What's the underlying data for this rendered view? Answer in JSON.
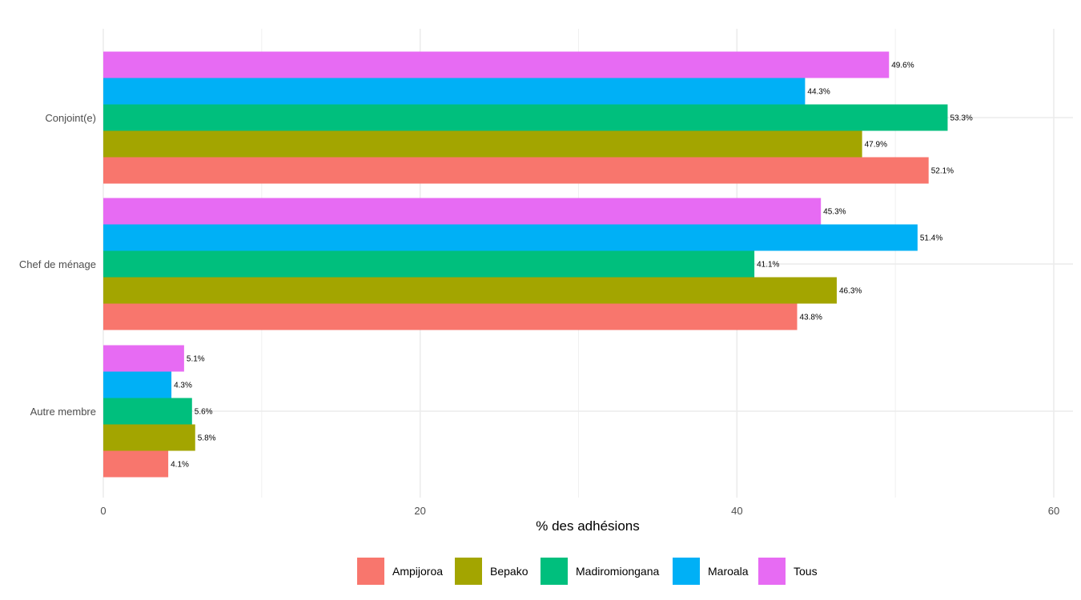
{
  "chart_data": {
    "type": "bar",
    "orientation": "horizontal",
    "title": "",
    "xlabel": "% des adhésions",
    "ylabel": "",
    "xlim": [
      0,
      61
    ],
    "x_ticks": [
      0,
      20,
      40,
      60
    ],
    "grid": true,
    "legend_position": "bottom",
    "categories": [
      "Autre membre",
      "Chef de ménage",
      "Conjoint(e)"
    ],
    "series": [
      {
        "name": "Ampijoroa",
        "color": "#F8766D",
        "values": [
          4.1,
          43.8,
          52.1
        ],
        "labels": [
          "4.1%",
          "43.8%",
          "52.1%"
        ]
      },
      {
        "name": "Bepako",
        "color": "#A3A500",
        "values": [
          5.8,
          46.3,
          47.9
        ],
        "labels": [
          "5.8%",
          "46.3%",
          "47.9%"
        ]
      },
      {
        "name": "Madiromiongana",
        "color": "#00BF7D",
        "values": [
          5.6,
          41.1,
          53.3
        ],
        "labels": [
          "5.6%",
          "41.1%",
          "53.3%"
        ]
      },
      {
        "name": "Maroala",
        "color": "#00B0F6",
        "values": [
          4.3,
          51.4,
          44.3
        ],
        "labels": [
          "4.3%",
          "51.4%",
          "44.3%"
        ]
      },
      {
        "name": "Tous",
        "color": "#E76BF3",
        "values": [
          5.1,
          45.3,
          49.6
        ],
        "labels": [
          "5.1%",
          "45.3%",
          "49.6%"
        ]
      }
    ]
  }
}
